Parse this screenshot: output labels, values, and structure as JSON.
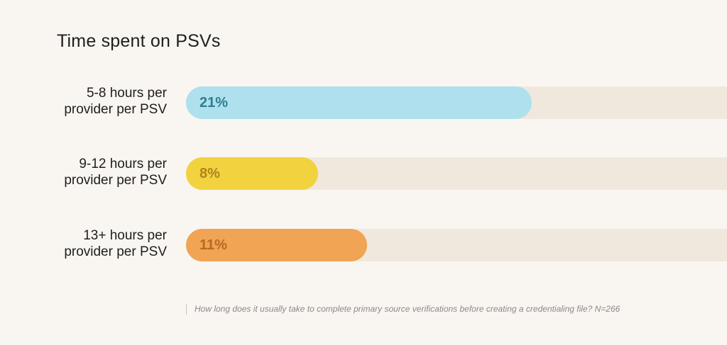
{
  "chart_data": {
    "type": "bar",
    "orientation": "horizontal",
    "title": "Time spent on PSVs",
    "categories": [
      "5-8 hours per provider per PSV",
      "9-12 hours per provider per PSV",
      "13+ hours per provider per PSV"
    ],
    "values": [
      21,
      8,
      11
    ],
    "value_labels": [
      "21%",
      "8%",
      "11%"
    ],
    "bar_colors": [
      "#aee0ee",
      "#f3d23f",
      "#f0a454"
    ],
    "label_colors": [
      "#2e7f8c",
      "#b0841a",
      "#b76a20"
    ],
    "track_color": "#f0e8dd",
    "footnote": "How long does it usually take to complete primary source verifications before creating a credentialing file? N=266"
  },
  "rows": [
    {
      "line1": "5-8 hours per",
      "line2": "provider per PSV"
    },
    {
      "line1": "9-12 hours per",
      "line2": "provider per PSV"
    },
    {
      "line1": "13+ hours per",
      "line2": "provider per PSV"
    }
  ]
}
